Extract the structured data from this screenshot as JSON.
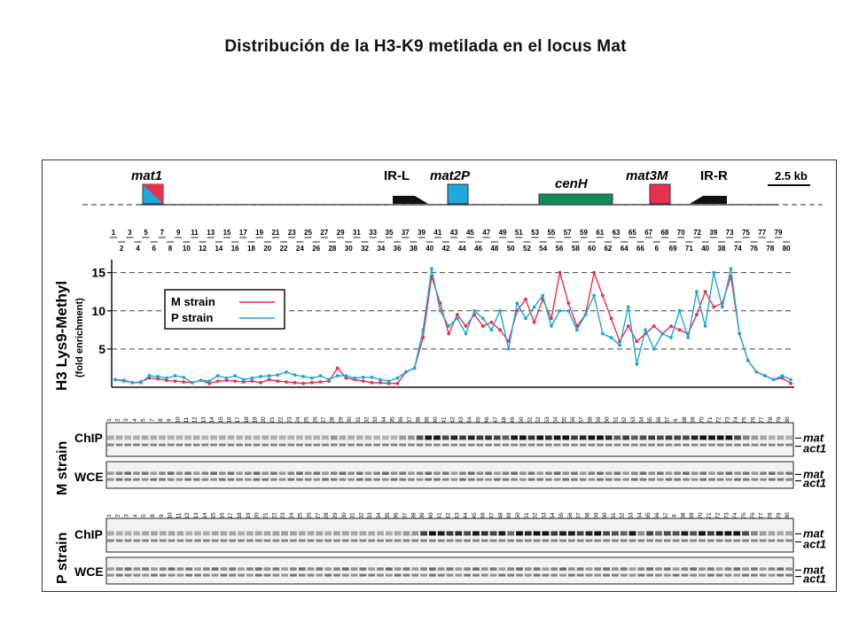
{
  "page": {
    "title": "Distribución de la H3-K9 metilada en el locus Mat"
  },
  "map": {
    "labels": {
      "mat1": "mat1",
      "irl": "IR-L",
      "mat2p": "mat2P",
      "cenh": "cenH",
      "mat3m": "mat3M",
      "irr": "IR-R",
      "scale": "2.5 kb"
    },
    "colors": {
      "red": "#e8304f",
      "blue": "#1ea8dc",
      "green": "#138a5a"
    },
    "primers_top": [
      "1",
      "3",
      "5",
      "7",
      "9",
      "11",
      "13",
      "15",
      "17",
      "19",
      "21",
      "23",
      "25",
      "27",
      "29",
      "31",
      "33",
      "35",
      "37",
      "39",
      "41",
      "43",
      "45",
      "47",
      "49",
      "51",
      "53",
      "55",
      "57",
      "59",
      "61",
      "63",
      "65",
      "67",
      "68",
      "70",
      "72",
      "39",
      "73",
      "75",
      "77",
      "79"
    ],
    "primers_bottom": [
      "2",
      "4",
      "6",
      "8",
      "10",
      "12",
      "14",
      "16",
      "18",
      "20",
      "22",
      "24",
      "26",
      "28",
      "30",
      "32",
      "34",
      "36",
      "38",
      "40",
      "42",
      "44",
      "46",
      "48",
      "50",
      "52",
      "54",
      "56",
      "58",
      "60",
      "62",
      "64",
      "66",
      "6",
      "69",
      "71",
      "40",
      "38",
      "74",
      "76",
      "78",
      "80"
    ]
  },
  "chart_data": {
    "type": "line",
    "ylabel": "H3 Lys9-Methyl",
    "ylabel_sub": "(fold enrichment)",
    "yticks": [
      "15",
      "10",
      "5"
    ],
    "ylim": [
      0,
      16
    ],
    "x": [
      1,
      2,
      3,
      4,
      5,
      6,
      7,
      8,
      9,
      10,
      11,
      12,
      13,
      14,
      15,
      16,
      17,
      18,
      19,
      20,
      21,
      22,
      23,
      24,
      25,
      26,
      27,
      28,
      29,
      30,
      31,
      32,
      33,
      34,
      35,
      36,
      37,
      38,
      39,
      40,
      41,
      42,
      43,
      44,
      45,
      46,
      47,
      48,
      49,
      50,
      51,
      52,
      53,
      54,
      55,
      56,
      57,
      58,
      59,
      60,
      61,
      62,
      63,
      64,
      65,
      66,
      67,
      68,
      69,
      70,
      71,
      72,
      73,
      74,
      75,
      76,
      77,
      78,
      79,
      80
    ],
    "series": [
      {
        "name": "M strain",
        "color": "#e8304f",
        "values": [
          1.0,
          0.9,
          0.6,
          0.7,
          1.2,
          1.1,
          0.9,
          0.8,
          0.7,
          0.6,
          0.9,
          0.5,
          0.8,
          0.9,
          0.8,
          0.7,
          0.8,
          0.6,
          1.0,
          0.8,
          0.7,
          0.6,
          0.5,
          0.6,
          0.7,
          0.8,
          2.5,
          1.2,
          1.0,
          0.8,
          0.6,
          0.6,
          0.5,
          0.5,
          2.0,
          2.5,
          6.5,
          14.5,
          11.0,
          7.0,
          9.5,
          8.0,
          9.5,
          8.0,
          8.5,
          7.5,
          6.0,
          10.0,
          11.5,
          8.5,
          11.5,
          9.0,
          15.0,
          11.0,
          8.0,
          9.5,
          15.0,
          12.0,
          9.0,
          6.0,
          8.0,
          6.0,
          7.0,
          8.0,
          7.0,
          8.0,
          7.5,
          7.0,
          9.5,
          12.5,
          10.5,
          11.0,
          14.5,
          7.0,
          3.5,
          2.0,
          1.5,
          1.0,
          1.2,
          0.5
        ]
      },
      {
        "name": "P strain",
        "color": "#1ea8dc",
        "values": [
          1.0,
          0.8,
          0.6,
          0.6,
          1.5,
          1.4,
          1.2,
          1.5,
          1.3,
          0.6,
          0.9,
          0.8,
          1.5,
          1.2,
          1.5,
          1.0,
          1.2,
          1.4,
          1.5,
          1.6,
          2.0,
          1.6,
          1.4,
          1.2,
          1.5,
          1.0,
          1.5,
          1.5,
          1.2,
          1.3,
          1.3,
          1.0,
          0.8,
          1.2,
          2.0,
          2.5,
          7.5,
          15.5,
          10.0,
          8.0,
          9.0,
          7.0,
          10.0,
          9.0,
          7.5,
          10.0,
          5.0,
          11.0,
          9.0,
          10.5,
          12.0,
          8.0,
          10.0,
          10.0,
          7.5,
          9.5,
          12.0,
          7.0,
          6.5,
          5.5,
          10.5,
          3.0,
          7.5,
          5.0,
          7.0,
          6.5,
          10.0,
          6.5,
          12.5,
          8.0,
          15.0,
          10.5,
          15.5,
          7.0,
          3.5,
          2.0,
          1.5,
          1.0,
          1.5,
          1.0
        ]
      }
    ]
  },
  "gels": {
    "strain_m": "M strain",
    "strain_p": "P strain",
    "chip": "ChIP",
    "wce": "WCE",
    "band_mat": "mat",
    "band_act1": "act1",
    "lane_numbers_m": [
      "1",
      "2",
      "3",
      "4",
      "5",
      "7",
      "8",
      "9",
      "10",
      "11",
      "12",
      "13",
      "14",
      "15",
      "16",
      "17",
      "18",
      "19",
      "20",
      "21",
      "22",
      "23",
      "24",
      "25",
      "26",
      "27",
      "28",
      "29",
      "30",
      "31",
      "32",
      "33",
      "34",
      "35",
      "36",
      "37",
      "38",
      "39",
      "40",
      "41",
      "42",
      "43",
      "44",
      "45",
      "46",
      "47",
      "48",
      "49",
      "50",
      "51",
      "52",
      "53",
      "54",
      "55",
      "56",
      "57",
      "58",
      "59",
      "60",
      "61",
      "62",
      "63",
      "64",
      "65",
      "66",
      "67",
      "6",
      "68",
      "69",
      "70",
      "71",
      "72",
      "73",
      "74",
      "75",
      "76",
      "77",
      "78",
      "79",
      "80"
    ],
    "lane_numbers_p": [
      "1",
      "2",
      "3",
      "4",
      "5",
      "8",
      "9",
      "10",
      "11",
      "12",
      "13",
      "14",
      "15",
      "16",
      "17",
      "18",
      "19",
      "20",
      "21",
      "22",
      "23",
      "24",
      "25",
      "26",
      "27",
      "28",
      "29",
      "30",
      "31",
      "32",
      "33",
      "34",
      "35",
      "36",
      "37",
      "38",
      "39",
      "40",
      "41",
      "42",
      "43",
      "44",
      "45",
      "46",
      "47",
      "48",
      "49",
      "50",
      "51",
      "52",
      "53",
      "54",
      "55",
      "56",
      "57",
      "58",
      "59",
      "60",
      "61",
      "62",
      "63",
      "64",
      "65",
      "66",
      "67",
      "6",
      "68",
      "69",
      "70",
      "71",
      "72",
      "73",
      "74",
      "75",
      "76",
      "77",
      "78",
      "79",
      "80"
    ]
  }
}
